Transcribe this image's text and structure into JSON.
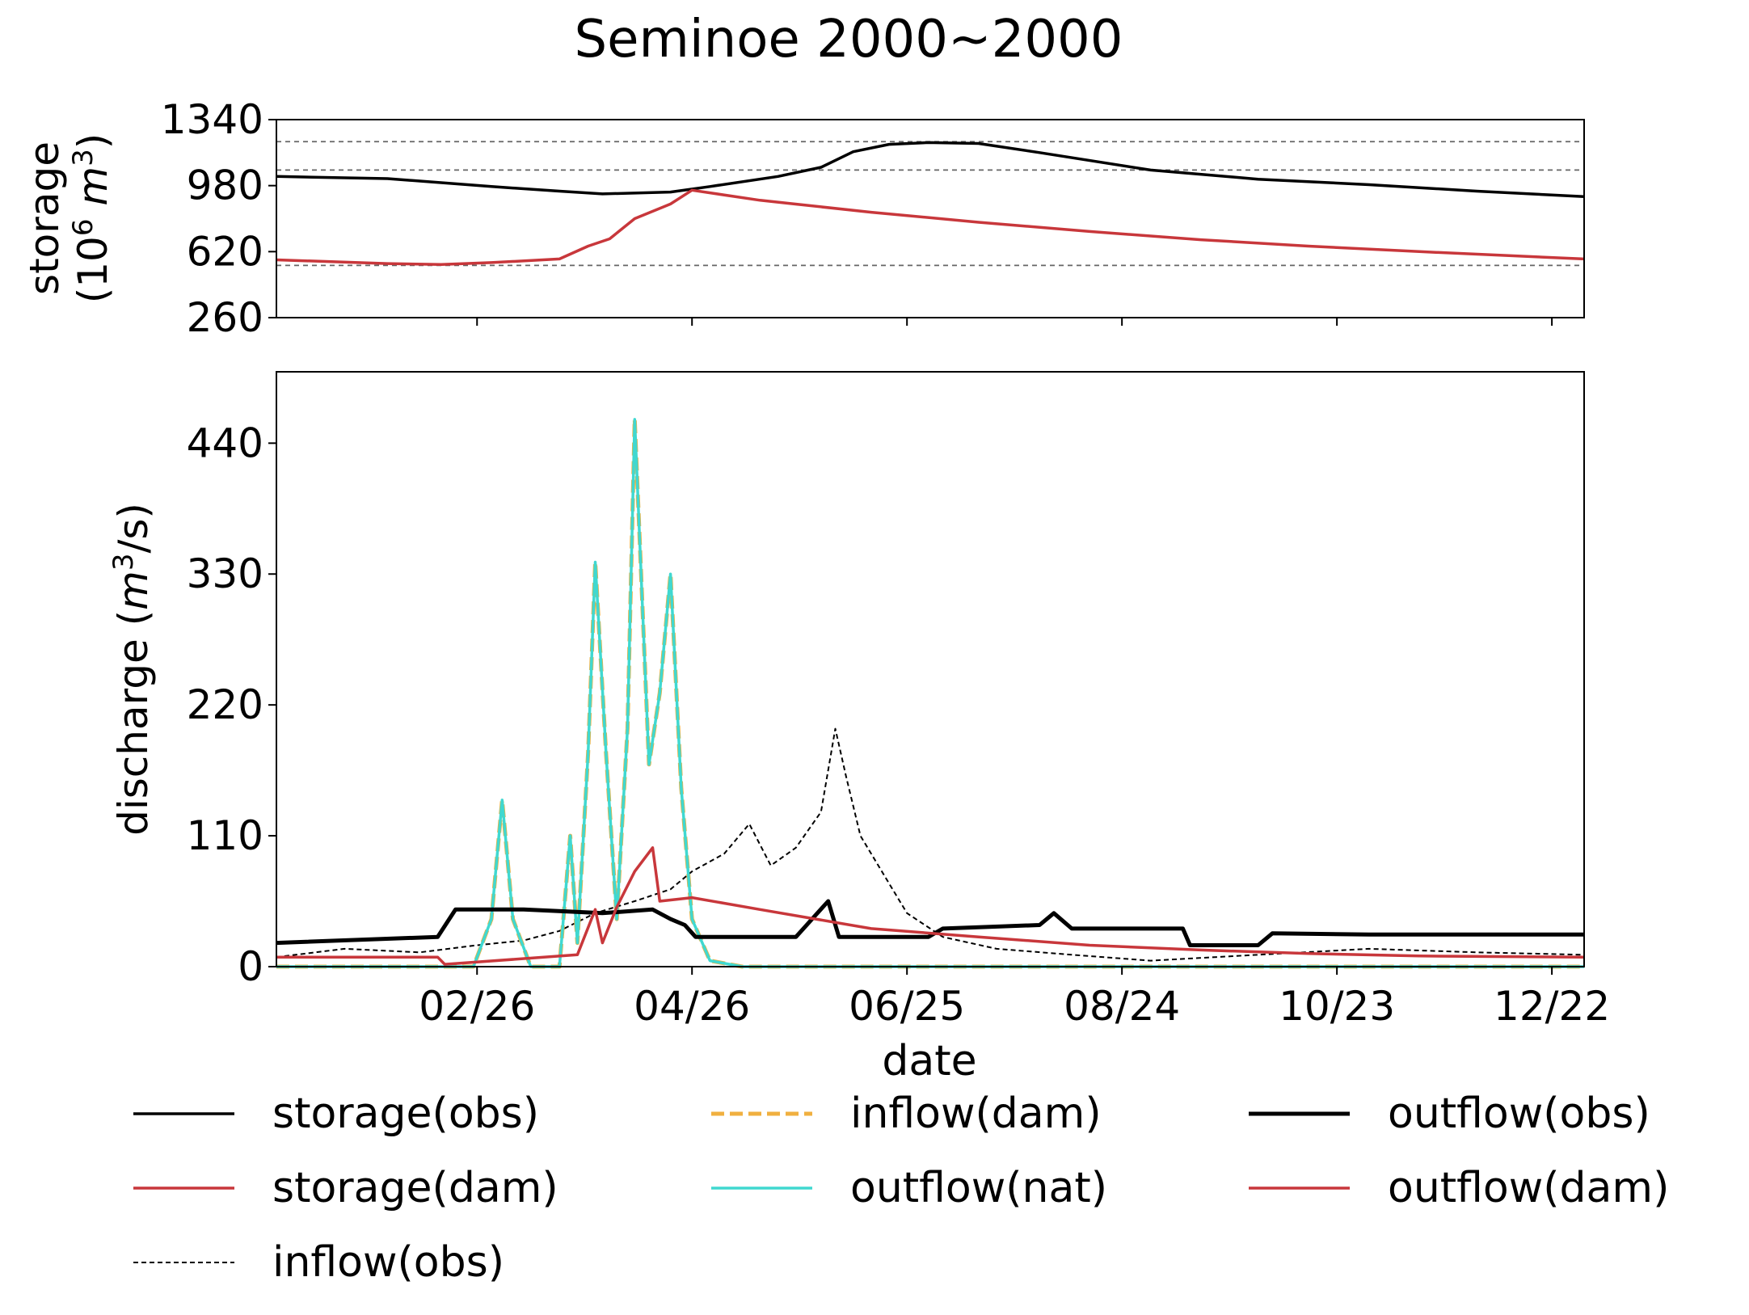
{
  "chart_data": {
    "title": "Seminoe  2000~2000",
    "xlabel": "date",
    "x_tick_labels": [
      "02/26",
      "04/26",
      "06/25",
      "08/24",
      "10/23",
      "12/22"
    ],
    "x_tick_dates": [
      "2000-02-26",
      "2000-04-26",
      "2000-06-25",
      "2000-08-24",
      "2000-10-23",
      "2000-12-22"
    ],
    "x_range": [
      "2000-01-01",
      "2000-12-31"
    ],
    "legend_position": "bottom",
    "panels": [
      {
        "type": "line",
        "ylabel_line1": "storage",
        "ylabel_line2_prefix": "(10",
        "ylabel_line2_sup": "6",
        "ylabel_line2_unit": "m",
        "ylabel_line2_unit_sup": "3",
        "ylabel_line2_suffix": ")",
        "ylim": [
          260,
          1340
        ],
        "y_ticks": [
          "260",
          "620",
          "980",
          "1340"
        ],
        "reference_lines": [
          1220,
          1065,
          545
        ],
        "series": [
          {
            "name": "storage(obs)",
            "color": "#000000",
            "style": "solid",
            "points": [
              [
                "2000-01-01",
                1030
              ],
              [
                "2000-02-01",
                1018
              ],
              [
                "2000-03-01",
                975
              ],
              [
                "2000-03-20",
                950
              ],
              [
                "2000-04-01",
                935
              ],
              [
                "2000-04-20",
                945
              ],
              [
                "2000-05-01",
                975
              ],
              [
                "2000-05-20",
                1030
              ],
              [
                "2000-06-01",
                1080
              ],
              [
                "2000-06-10",
                1165
              ],
              [
                "2000-06-20",
                1205
              ],
              [
                "2000-07-01",
                1215
              ],
              [
                "2000-07-15",
                1210
              ],
              [
                "2000-08-01",
                1160
              ],
              [
                "2000-09-01",
                1065
              ],
              [
                "2000-10-01",
                1015
              ],
              [
                "2000-11-01",
                985
              ],
              [
                "2000-12-01",
                950
              ],
              [
                "2000-12-31",
                920
              ]
            ]
          },
          {
            "name": "storage(dam)",
            "color": "#c8373b",
            "style": "solid",
            "points": [
              [
                "2000-01-01",
                575
              ],
              [
                "2000-02-01",
                555
              ],
              [
                "2000-02-16",
                550
              ],
              [
                "2000-03-01",
                560
              ],
              [
                "2000-03-20",
                580
              ],
              [
                "2000-03-28",
                650
              ],
              [
                "2000-04-03",
                690
              ],
              [
                "2000-04-10",
                800
              ],
              [
                "2000-04-20",
                880
              ],
              [
                "2000-04-26",
                955
              ],
              [
                "2000-05-15",
                900
              ],
              [
                "2000-06-15",
                835
              ],
              [
                "2000-07-15",
                780
              ],
              [
                "2000-08-15",
                730
              ],
              [
                "2000-09-15",
                685
              ],
              [
                "2000-10-15",
                650
              ],
              [
                "2000-11-15",
                620
              ],
              [
                "2000-12-31",
                580
              ]
            ]
          }
        ]
      },
      {
        "type": "line",
        "ylabel_prefix": "discharge (",
        "ylabel_unit": "m",
        "ylabel_unit_sup": "3",
        "ylabel_suffix": "/s)",
        "ylim": [
          0,
          500
        ],
        "y_ticks": [
          "0",
          "110",
          "220",
          "330",
          "440"
        ],
        "series": [
          {
            "name": "inflow(obs)",
            "color": "#000000",
            "style": "dashed-thin",
            "points": [
              [
                "2000-01-01",
                8
              ],
              [
                "2000-01-20",
                15
              ],
              [
                "2000-02-10",
                12
              ],
              [
                "2000-02-26",
                18
              ],
              [
                "2000-03-10",
                22
              ],
              [
                "2000-03-20",
                30
              ],
              [
                "2000-03-30",
                45
              ],
              [
                "2000-04-10",
                55
              ],
              [
                "2000-04-20",
                65
              ],
              [
                "2000-04-26",
                80
              ],
              [
                "2000-05-05",
                95
              ],
              [
                "2000-05-12",
                120
              ],
              [
                "2000-05-18",
                85
              ],
              [
                "2000-05-25",
                100
              ],
              [
                "2000-06-01",
                130
              ],
              [
                "2000-06-05",
                200
              ],
              [
                "2000-06-08",
                160
              ],
              [
                "2000-06-12",
                110
              ],
              [
                "2000-06-20",
                70
              ],
              [
                "2000-06-25",
                45
              ],
              [
                "2000-07-05",
                25
              ],
              [
                "2000-07-20",
                15
              ],
              [
                "2000-08-10",
                10
              ],
              [
                "2000-09-01",
                5
              ],
              [
                "2000-10-01",
                10
              ],
              [
                "2000-11-01",
                15
              ],
              [
                "2000-12-01",
                12
              ],
              [
                "2000-12-31",
                10
              ]
            ]
          },
          {
            "name": "inflow(dam)",
            "color": "#f0b040",
            "style": "dashed-thick",
            "points": [
              [
                "2000-01-01",
                0
              ],
              [
                "2000-02-25",
                0
              ],
              [
                "2000-03-01",
                40
              ],
              [
                "2000-03-04",
                140
              ],
              [
                "2000-03-07",
                40
              ],
              [
                "2000-03-12",
                0
              ],
              [
                "2000-03-20",
                0
              ],
              [
                "2000-03-23",
                110
              ],
              [
                "2000-03-25",
                20
              ],
              [
                "2000-03-28",
                180
              ],
              [
                "2000-03-30",
                340
              ],
              [
                "2000-04-02",
                180
              ],
              [
                "2000-04-05",
                40
              ],
              [
                "2000-04-08",
                200
              ],
              [
                "2000-04-10",
                460
              ],
              [
                "2000-04-14",
                170
              ],
              [
                "2000-04-17",
                230
              ],
              [
                "2000-04-20",
                330
              ],
              [
                "2000-04-23",
                150
              ],
              [
                "2000-04-26",
                40
              ],
              [
                "2000-05-01",
                5
              ],
              [
                "2000-05-10",
                0
              ],
              [
                "2000-12-31",
                0
              ]
            ]
          },
          {
            "name": "outflow(nat)",
            "color": "#40d8d0",
            "style": "solid",
            "points": [
              [
                "2000-01-01",
                0
              ],
              [
                "2000-02-25",
                0
              ],
              [
                "2000-03-01",
                40
              ],
              [
                "2000-03-04",
                140
              ],
              [
                "2000-03-07",
                40
              ],
              [
                "2000-03-12",
                0
              ],
              [
                "2000-03-20",
                0
              ],
              [
                "2000-03-23",
                110
              ],
              [
                "2000-03-25",
                20
              ],
              [
                "2000-03-28",
                180
              ],
              [
                "2000-03-30",
                340
              ],
              [
                "2000-04-02",
                180
              ],
              [
                "2000-04-05",
                40
              ],
              [
                "2000-04-08",
                200
              ],
              [
                "2000-04-10",
                460
              ],
              [
                "2000-04-14",
                170
              ],
              [
                "2000-04-17",
                230
              ],
              [
                "2000-04-20",
                330
              ],
              [
                "2000-04-23",
                150
              ],
              [
                "2000-04-26",
                40
              ],
              [
                "2000-05-01",
                5
              ],
              [
                "2000-05-10",
                0
              ],
              [
                "2000-12-31",
                0
              ]
            ]
          },
          {
            "name": "outflow(obs)",
            "color": "#000000",
            "style": "solid-thick",
            "points": [
              [
                "2000-01-01",
                20
              ],
              [
                "2000-02-15",
                25
              ],
              [
                "2000-02-20",
                48
              ],
              [
                "2000-03-10",
                48
              ],
              [
                "2000-04-01",
                45
              ],
              [
                "2000-04-15",
                48
              ],
              [
                "2000-04-20",
                40
              ],
              [
                "2000-04-24",
                35
              ],
              [
                "2000-04-27",
                25
              ],
              [
                "2000-05-25",
                25
              ],
              [
                "2000-06-03",
                55
              ],
              [
                "2000-06-06",
                25
              ],
              [
                "2000-07-01",
                25
              ],
              [
                "2000-07-05",
                32
              ],
              [
                "2000-08-01",
                35
              ],
              [
                "2000-08-05",
                45
              ],
              [
                "2000-08-10",
                32
              ],
              [
                "2000-09-10",
                32
              ],
              [
                "2000-09-12",
                18
              ],
              [
                "2000-10-01",
                18
              ],
              [
                "2000-10-05",
                28
              ],
              [
                "2000-11-01",
                27
              ],
              [
                "2000-12-31",
                27
              ]
            ]
          },
          {
            "name": "outflow(dam)",
            "color": "#c8373b",
            "style": "solid",
            "points": [
              [
                "2000-01-01",
                8
              ],
              [
                "2000-02-15",
                8
              ],
              [
                "2000-02-17",
                2
              ],
              [
                "2000-03-25",
                10
              ],
              [
                "2000-03-30",
                48
              ],
              [
                "2000-04-01",
                20
              ],
              [
                "2000-04-05",
                50
              ],
              [
                "2000-04-10",
                80
              ],
              [
                "2000-04-15",
                100
              ],
              [
                "2000-04-17",
                55
              ],
              [
                "2000-04-26",
                58
              ],
              [
                "2000-05-15",
                48
              ],
              [
                "2000-06-15",
                32
              ],
              [
                "2000-07-15",
                25
              ],
              [
                "2000-08-15",
                18
              ],
              [
                "2000-09-15",
                14
              ],
              [
                "2000-10-15",
                11
              ],
              [
                "2000-11-15",
                9
              ],
              [
                "2000-12-31",
                8
              ]
            ]
          }
        ]
      }
    ]
  }
}
